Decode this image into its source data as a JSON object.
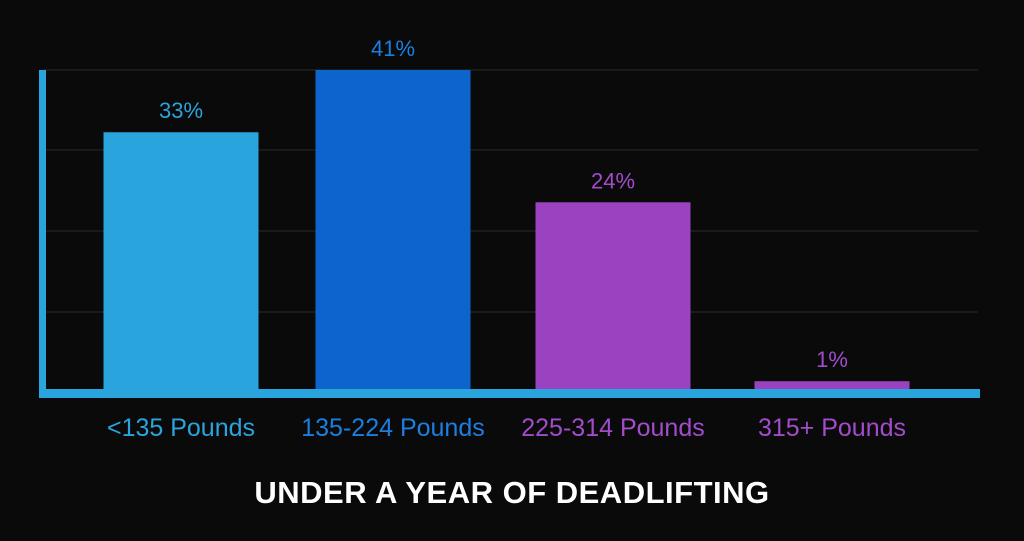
{
  "chart_data": {
    "type": "bar",
    "title": "UNDER A YEAR OF DEADLIFTING",
    "categories": [
      "<135 Pounds",
      "135-224 Pounds",
      "225-314 Pounds",
      "315+ Pounds"
    ],
    "values": [
      33,
      41,
      24,
      1
    ],
    "value_labels": [
      "33%",
      "41%",
      "24%",
      "1%"
    ],
    "unit": "%",
    "ylim": [
      0,
      41
    ],
    "grid": true,
    "legend": "none",
    "colors": [
      "#2aa4dc",
      "#0d64cc",
      "#9a42c0",
      "#9a42c0"
    ],
    "label_colors": [
      "#2aa4dc",
      "#1a7fe0",
      "#a24ccb",
      "#a24ccb"
    ]
  },
  "colors": {
    "background": "#0a0a0a",
    "axis": "#2aa4dc",
    "grid": "#2a2a2a",
    "title": "#ffffff"
  }
}
